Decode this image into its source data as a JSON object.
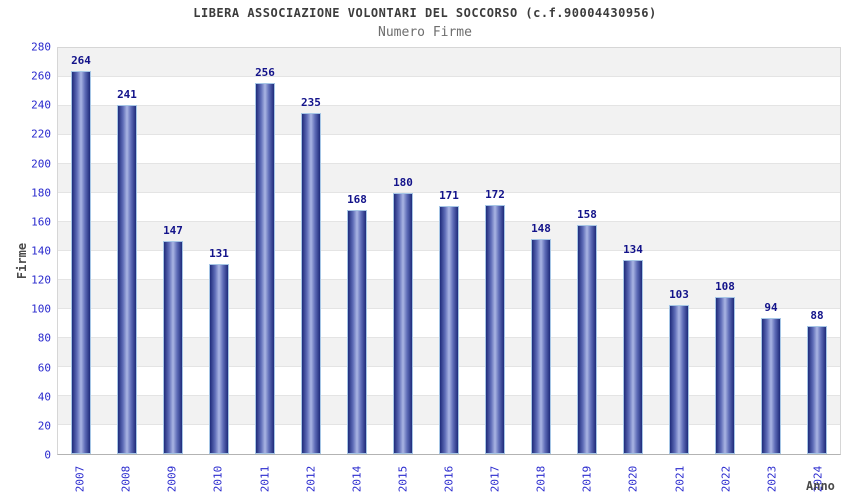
{
  "header": {
    "title": "LIBERA ASSOCIAZIONE VOLONTARI DEL SOCCORSO (c.f.90004430956)",
    "subtitle": "Numero Firme"
  },
  "chart_data": {
    "type": "bar",
    "title": "LIBERA ASSOCIAZIONE VOLONTARI DEL SOCCORSO (c.f.90004430956)",
    "subtitle": "Numero Firme",
    "xlabel": "Anno",
    "ylabel": "Firme",
    "categories": [
      "2007",
      "2008",
      "2009",
      "2010",
      "2011",
      "2012",
      "2014",
      "2015",
      "2016",
      "2017",
      "2018",
      "2019",
      "2020",
      "2021",
      "2022",
      "2023",
      "2024"
    ],
    "values": [
      264,
      241,
      147,
      131,
      256,
      235,
      168,
      180,
      171,
      172,
      148,
      158,
      134,
      103,
      108,
      94,
      88
    ],
    "ylim": [
      0,
      280
    ],
    "ytick_step": 20,
    "grid": true,
    "band_stripes": true,
    "legend": "none",
    "colors": {
      "title": "#3c3c3c",
      "subtitle": "#6e6e6e",
      "axis_title": "#4a4a4a",
      "tick_label": "#2a2ace",
      "value_label": "#13138a",
      "bar_dark": "#1f2b7b",
      "bar_mid": "#5f6db8",
      "bar_light": "#aab5e3",
      "bar_border": "#a6c6e6",
      "stripe_gray": "#f2f2f2",
      "stripe_white": "#ffffff",
      "gridline": "#e4e4e4",
      "axis_line": "#b3b3b3"
    }
  }
}
